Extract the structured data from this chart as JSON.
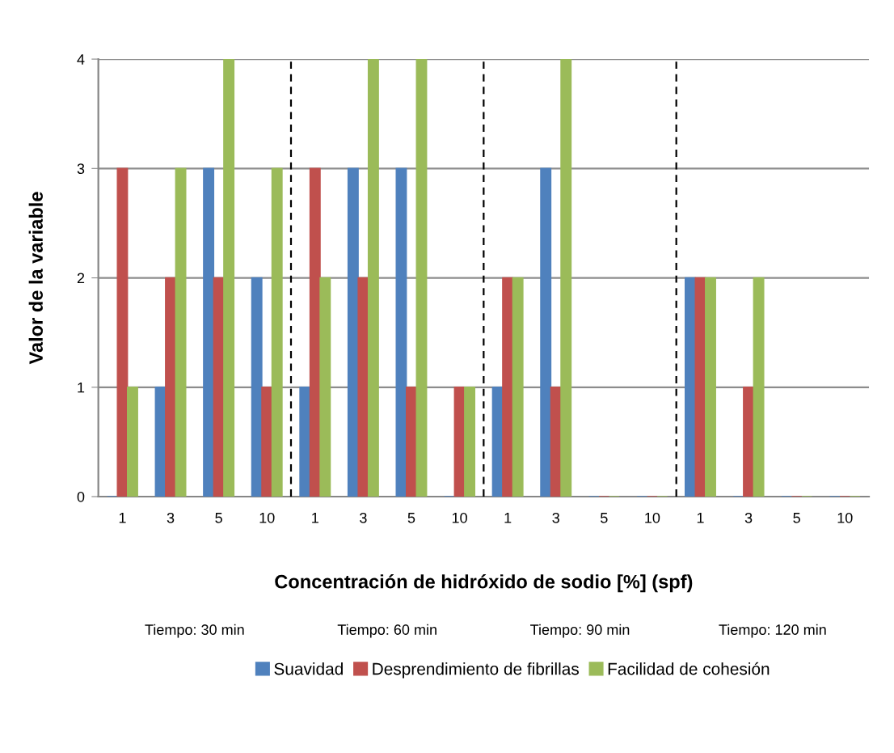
{
  "chart_data": {
    "type": "bar",
    "xlabel": "Concentración de hidróxido de sodio [%] (spf)",
    "ylabel": "Valor de la variable",
    "categories": [
      "1",
      "3",
      "5",
      "10",
      "1",
      "3",
      "5",
      "10",
      "1",
      "3",
      "5",
      "10",
      "1",
      "3",
      "5",
      "10"
    ],
    "series": [
      {
        "name": "Suavidad",
        "color": "#4f81bd",
        "values": [
          0,
          1,
          3,
          2,
          1,
          3,
          3,
          0,
          1,
          3,
          0,
          0,
          2,
          0,
          0,
          0
        ]
      },
      {
        "name": "Desprendimiento de fibrillas",
        "color": "#c0504d",
        "values": [
          3,
          2,
          2,
          1,
          3,
          2,
          1,
          1,
          2,
          1,
          0,
          0,
          2,
          1,
          0,
          0
        ]
      },
      {
        "name": "Facilidad de cohesión",
        "color": "#9bbb59",
        "values": [
          1,
          3,
          4,
          3,
          2,
          4,
          4,
          1,
          2,
          4,
          0,
          0,
          2,
          2,
          0,
          0
        ]
      }
    ],
    "ylim": [
      0,
      4
    ],
    "yticks": [
      0,
      1,
      2,
      3,
      4
    ],
    "grid": "y",
    "legend": "bottom",
    "annotations": [
      "Tiempo: 30 min",
      "Tiempo: 60 min",
      "Tiempo: 90 min",
      "Tiempo: 120 min"
    ]
  }
}
